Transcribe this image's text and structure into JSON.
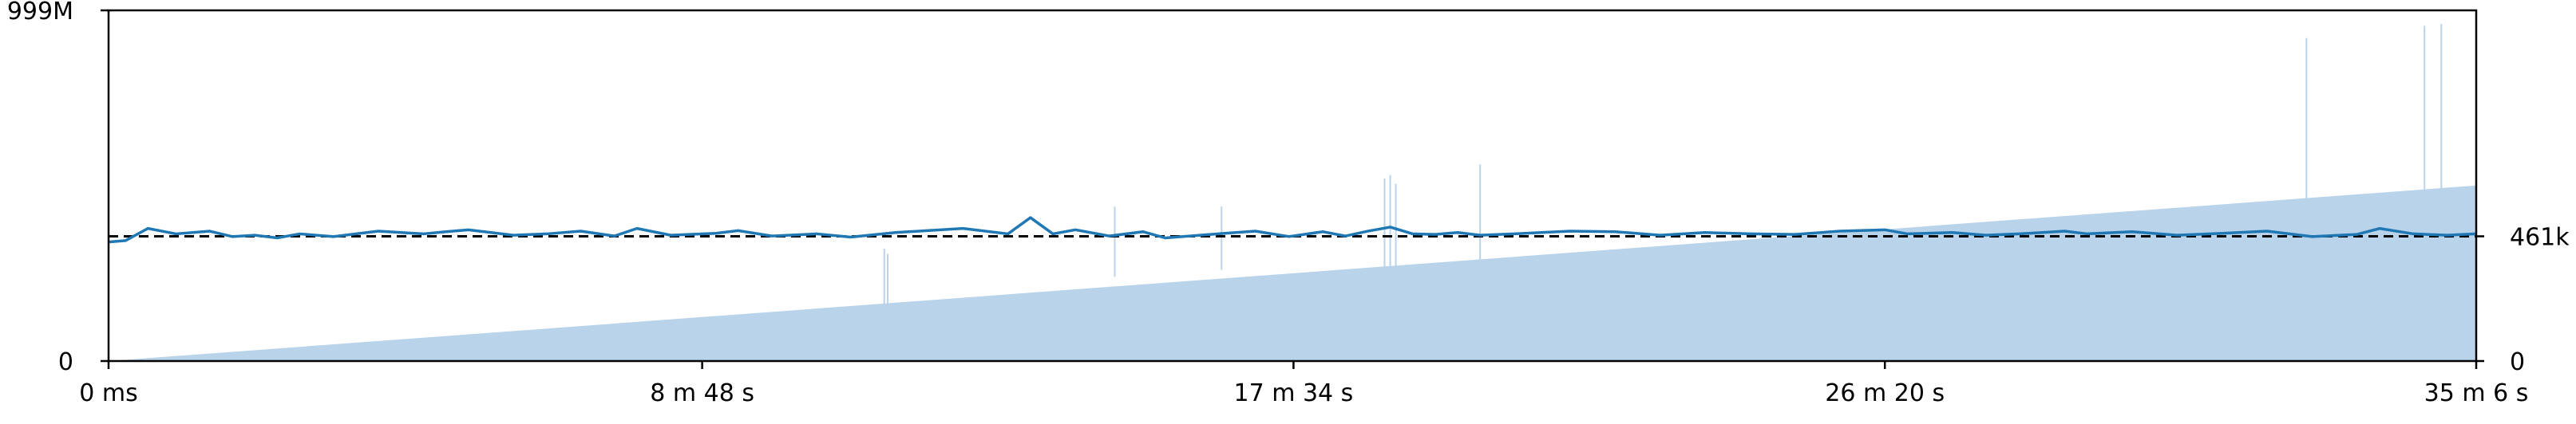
{
  "chart_data": {
    "type": "area",
    "title": "",
    "xlabel": "",
    "ylabel": "",
    "x_range_seconds": [
      0,
      2106
    ],
    "x_ticks": [
      {
        "value": 0,
        "label": "0 ms"
      },
      {
        "value": 528,
        "label": "8 m 48 s"
      },
      {
        "value": 1054,
        "label": "17 m 34 s"
      },
      {
        "value": 1580,
        "label": "26 m 20 s"
      },
      {
        "value": 2106,
        "label": "35 m 6 s"
      }
    ],
    "left_axis": {
      "range": [
        0,
        999000000
      ],
      "ticks": [
        {
          "value": 0,
          "label": "0"
        },
        {
          "value": 999000000,
          "label": "999M"
        }
      ]
    },
    "right_axis": {
      "range": [
        0,
        1296000
      ],
      "ticks": [
        {
          "value": 0,
          "label": "0"
        },
        {
          "value": 461000,
          "label": "461k"
        }
      ]
    },
    "colors": {
      "line": "#1f77b4",
      "area": "#b9d3ea",
      "spikes": "#b9d3ea",
      "reference": "#000000"
    },
    "series": [
      {
        "axis": "left",
        "style": "area",
        "x": [
          0,
          2106
        ],
        "values": [
          0,
          500000000
        ]
      },
      {
        "axis": "left",
        "style": "spikes",
        "x": [
          690,
          693,
          895,
          990,
          1135,
          1140,
          1145,
          1220,
          1955,
          2060,
          2075
        ],
        "values": [
          320000000,
          305000000,
          440000000,
          440000000,
          520000000,
          530000000,
          505000000,
          560000000,
          920000000,
          955000000,
          960000000
        ],
        "floor": [
          150000000,
          150000000,
          240000000,
          260000000,
          265000000,
          265000000,
          265000000,
          280000000,
          460000000,
          480000000,
          485000000
        ]
      },
      {
        "axis": "right",
        "style": "line",
        "x": [
          0,
          15,
          35,
          60,
          90,
          110,
          130,
          150,
          170,
          200,
          240,
          280,
          300,
          320,
          360,
          390,
          420,
          450,
          470,
          500,
          540,
          560,
          590,
          630,
          660,
          700,
          760,
          800,
          820,
          840,
          860,
          890,
          920,
          940,
          980,
          1020,
          1050,
          1080,
          1100,
          1120,
          1140,
          1160,
          1180,
          1200,
          1220,
          1250,
          1300,
          1340,
          1380,
          1420,
          1460,
          1500,
          1540,
          1580,
          1600,
          1640,
          1670,
          1700,
          1740,
          1760,
          1800,
          1840,
          1880,
          1920,
          1960,
          2000,
          2020,
          2050,
          2080,
          2106
        ],
        "values": [
          440000,
          445000,
          490000,
          470000,
          480000,
          460000,
          465000,
          455000,
          470000,
          460000,
          480000,
          470000,
          478000,
          485000,
          465000,
          470000,
          480000,
          462000,
          490000,
          465000,
          472000,
          482000,
          462000,
          470000,
          458000,
          475000,
          490000,
          470000,
          530000,
          470000,
          485000,
          462000,
          478000,
          455000,
          468000,
          480000,
          460000,
          478000,
          462000,
          480000,
          495000,
          470000,
          468000,
          475000,
          465000,
          470000,
          480000,
          478000,
          465000,
          475000,
          470000,
          468000,
          480000,
          485000,
          470000,
          475000,
          465000,
          470000,
          480000,
          470000,
          478000,
          465000,
          472000,
          480000,
          460000,
          468000,
          490000,
          470000,
          465000,
          470000
        ]
      },
      {
        "axis": "right",
        "style": "reference",
        "value": 461000
      }
    ],
    "grid": false,
    "legend": "none"
  }
}
